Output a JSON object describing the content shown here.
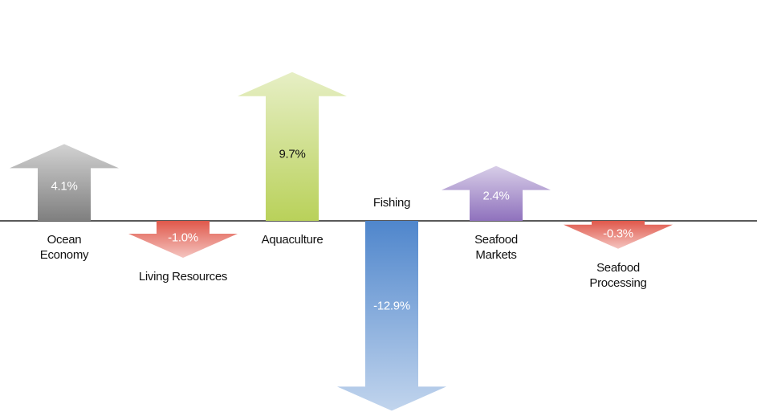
{
  "chart_data": {
    "type": "arrow",
    "categories": [
      "Ocean Economy",
      "Living Resources",
      "Aquaculture",
      "Fishing",
      "Seafood Markets",
      "Seafood Processing"
    ],
    "values": [
      4.1,
      -1.0,
      9.7,
      -12.9,
      2.4,
      -0.3
    ],
    "value_labels": [
      "4.1%",
      "-1.0%",
      "9.7%",
      "-12.9%",
      "2.4%",
      "-0.3%"
    ],
    "colors": [
      "#7f7f7f",
      "#e0584b",
      "#b9d15a",
      "#4f86cc",
      "#8f72bd",
      "#e0584b"
    ]
  }
}
